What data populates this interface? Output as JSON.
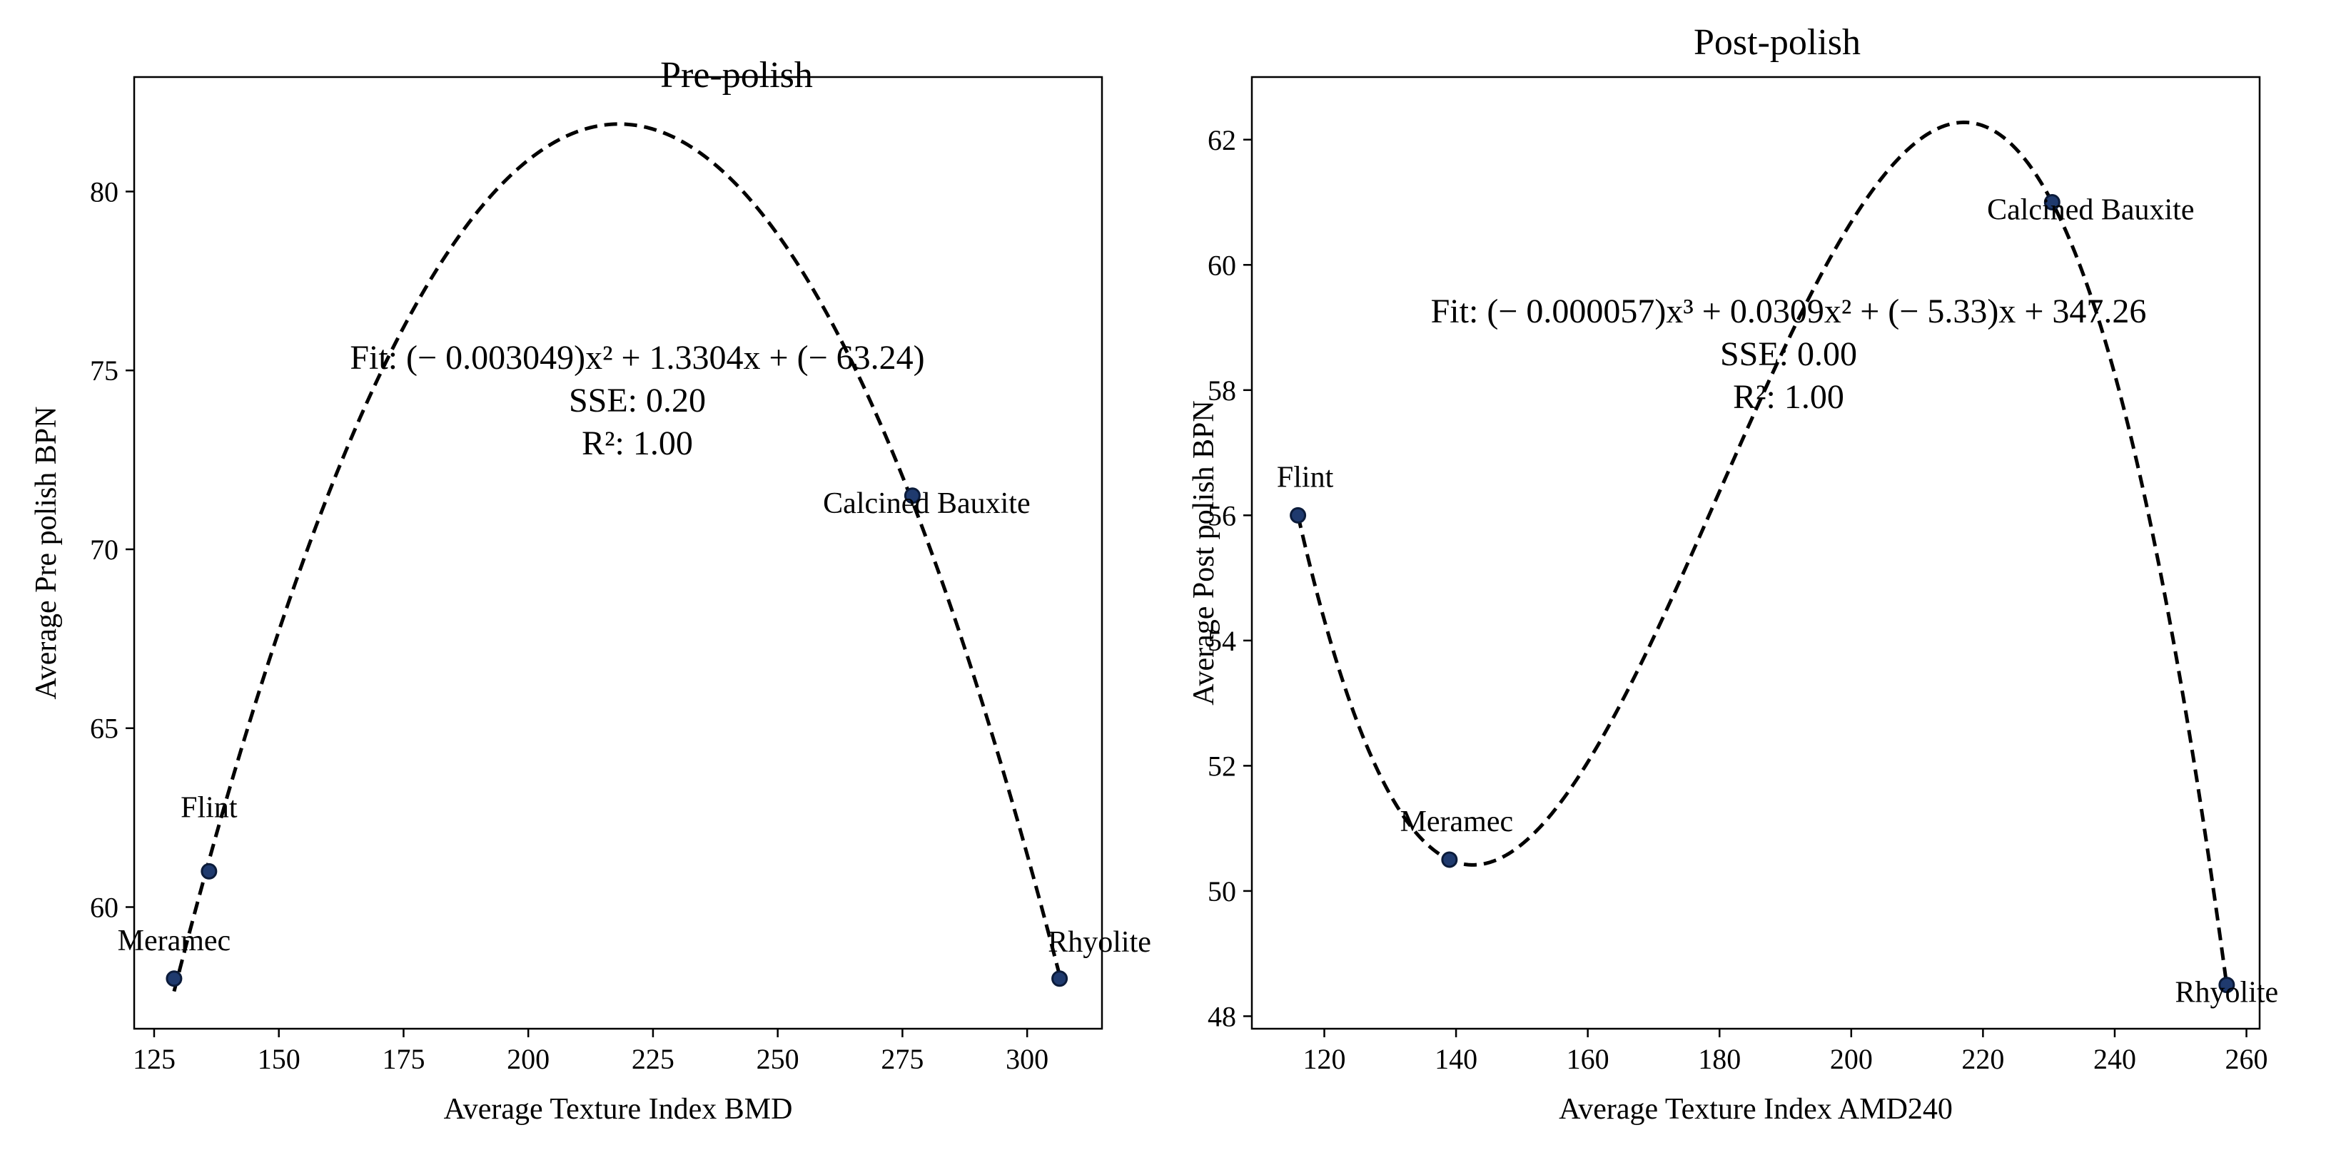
{
  "chart_data": [
    {
      "type": "scatter",
      "title": "Pre-polish",
      "xlabel": "Average Texture Index BMD",
      "ylabel": "Average Pre polish BPN",
      "xlim": [
        121,
        315
      ],
      "ylim": [
        56.6,
        83.2
      ],
      "xticks": [
        125,
        150,
        175,
        200,
        225,
        250,
        275,
        300
      ],
      "yticks": [
        60,
        65,
        70,
        75,
        80
      ],
      "points": [
        {
          "label": "Meramec",
          "x": 129,
          "y": 58
        },
        {
          "label": "Flint",
          "x": 136,
          "y": 61
        },
        {
          "label": "Calcined Bauxite",
          "x": 277,
          "y": 71.5
        },
        {
          "label": "Rhyolite",
          "x": 306.5,
          "y": 58
        }
      ],
      "fit": {
        "degree": 2,
        "coeffs": [
          -0.003049,
          1.3304,
          -63.24
        ],
        "x_range": [
          129,
          306.5
        ]
      },
      "fit_text": [
        "Fit:  (− 0.003049)x² + 1.3304x + (− 63.24)",
        "SSE: 0.20",
        "R²: 1.00"
      ],
      "marker_color": "#1f3a6e",
      "grid": false
    },
    {
      "type": "scatter",
      "title": "Post-polish",
      "xlabel": "Average Texture Index AMD240",
      "ylabel": "Average Post polish BPN",
      "xlim": [
        109,
        262
      ],
      "ylim": [
        47.8,
        63.0
      ],
      "xticks": [
        120,
        140,
        160,
        180,
        200,
        220,
        240,
        260
      ],
      "yticks": [
        48,
        50,
        52,
        54,
        56,
        58,
        60,
        62
      ],
      "points": [
        {
          "label": "Flint",
          "x": 116,
          "y": 56
        },
        {
          "label": "Meramec",
          "x": 139,
          "y": 50.5
        },
        {
          "label": "Calcined Bauxite",
          "x": 230.5,
          "y": 61
        },
        {
          "label": "Rhyolite",
          "x": 257,
          "y": 48.5
        }
      ],
      "fit": {
        "degree": 3,
        "x_range": [
          116,
          257
        ]
      },
      "fit_text": [
        "Fit:  (− 0.000057)x³ + 0.0309x² + (− 5.33)x + 347.26",
        "SSE: 0.00",
        "R²: 1.00"
      ],
      "marker_color": "#1f3a6e",
      "grid": false
    }
  ]
}
